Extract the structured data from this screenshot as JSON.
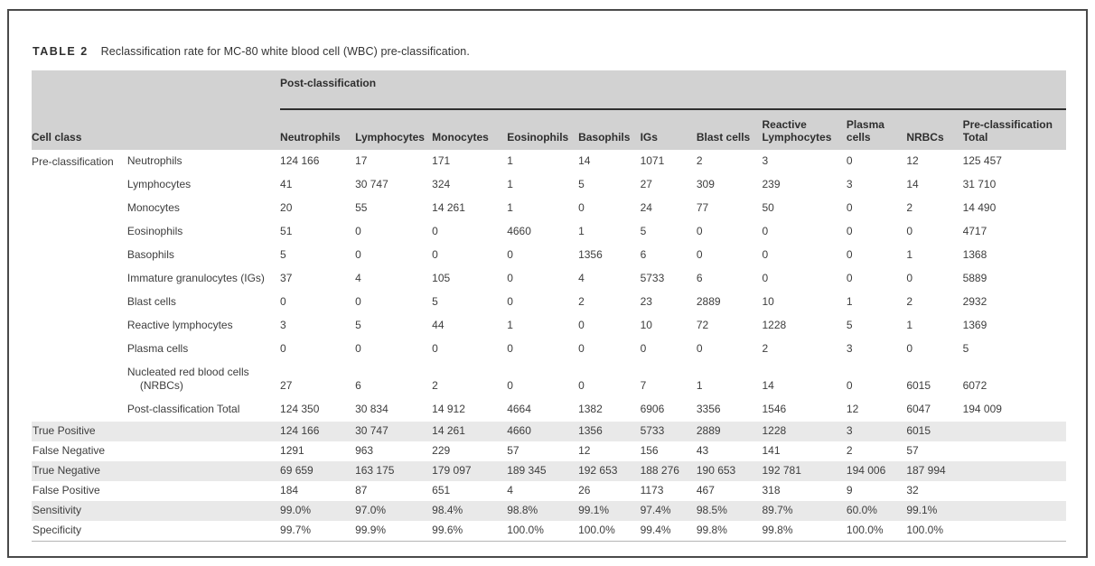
{
  "title": {
    "label": "TABLE 2",
    "caption": "Reclassification rate for MC-80 white blood cell (WBC) pre-classification."
  },
  "table": {
    "span_header": "Post-classification",
    "stub_header": "Cell class",
    "group_label": "Pre-classification",
    "columns": [
      "Neutrophils",
      "Lymphocytes",
      "Monocytes",
      "Eosinophils",
      "Basophils",
      "IGs",
      "Blast cells",
      "Reactive Lymphocytes",
      "Plasma cells",
      "NRBCs",
      "Pre-classification Total"
    ],
    "pre_rows": [
      {
        "label": "Neutrophils",
        "values": [
          "124 166",
          "17",
          "171",
          "1",
          "14",
          "1071",
          "2",
          "3",
          "0",
          "12",
          "125 457"
        ]
      },
      {
        "label": "Lymphocytes",
        "values": [
          "41",
          "30 747",
          "324",
          "1",
          "5",
          "27",
          "309",
          "239",
          "3",
          "14",
          "31 710"
        ]
      },
      {
        "label": "Monocytes",
        "values": [
          "20",
          "55",
          "14 261",
          "1",
          "0",
          "24",
          "77",
          "50",
          "0",
          "2",
          "14 490"
        ]
      },
      {
        "label": "Eosinophils",
        "values": [
          "51",
          "0",
          "0",
          "4660",
          "1",
          "5",
          "0",
          "0",
          "0",
          "0",
          "4717"
        ]
      },
      {
        "label": "Basophils",
        "values": [
          "5",
          "0",
          "0",
          "0",
          "1356",
          "6",
          "0",
          "0",
          "0",
          "1",
          "1368"
        ]
      },
      {
        "label": "Immature granulocytes (IGs)",
        "values": [
          "37",
          "4",
          "105",
          "0",
          "4",
          "5733",
          "6",
          "0",
          "0",
          "0",
          "5889"
        ]
      },
      {
        "label": "Blast cells",
        "values": [
          "0",
          "0",
          "5",
          "0",
          "2",
          "23",
          "2889",
          "10",
          "1",
          "2",
          "2932"
        ]
      },
      {
        "label": "Reactive lymphocytes",
        "values": [
          "3",
          "5",
          "44",
          "1",
          "0",
          "10",
          "72",
          "1228",
          "5",
          "1",
          "1369"
        ]
      },
      {
        "label": "Plasma cells",
        "values": [
          "0",
          "0",
          "0",
          "0",
          "0",
          "0",
          "0",
          "2",
          "3",
          "0",
          "5"
        ]
      },
      {
        "label": "Nucleated red blood cells (NRBCs)",
        "values": [
          "27",
          "6",
          "2",
          "0",
          "0",
          "7",
          "1",
          "14",
          "0",
          "6015",
          "6072"
        ]
      },
      {
        "label": "Post-classification Total",
        "values": [
          "124 350",
          "30 834",
          "14 912",
          "4664",
          "1382",
          "6906",
          "3356",
          "1546",
          "12",
          "6047",
          "194 009"
        ]
      }
    ],
    "summary_rows": [
      {
        "label": "True Positive",
        "values": [
          "124 166",
          "30 747",
          "14 261",
          "4660",
          "1356",
          "5733",
          "2889",
          "1228",
          "3",
          "6015",
          ""
        ]
      },
      {
        "label": "False Negative",
        "values": [
          "1291",
          "963",
          "229",
          "57",
          "12",
          "156",
          "43",
          "141",
          "2",
          "57",
          ""
        ]
      },
      {
        "label": "True Negative",
        "values": [
          "69 659",
          "163 175",
          "179 097",
          "189 345",
          "192 653",
          "188 276",
          "190 653",
          "192 781",
          "194 006",
          "187 994",
          ""
        ]
      },
      {
        "label": "False Positive",
        "values": [
          "184",
          "87",
          "651",
          "4",
          "26",
          "1173",
          "467",
          "318",
          "9",
          "32",
          ""
        ]
      },
      {
        "label": "Sensitivity",
        "values": [
          "99.0%",
          "97.0%",
          "98.4%",
          "98.8%",
          "99.1%",
          "97.4%",
          "98.5%",
          "89.7%",
          "60.0%",
          "99.1%",
          ""
        ]
      },
      {
        "label": "Specificity",
        "values": [
          "99.7%",
          "99.9%",
          "99.6%",
          "100.0%",
          "100.0%",
          "99.4%",
          "99.8%",
          "99.8%",
          "100.0%",
          "100.0%",
          ""
        ]
      }
    ]
  },
  "colors": {
    "header_band": "#d2d2d2",
    "row_shade": "#e9e9e9",
    "dark_rule": "#2f2f2f",
    "light_rule": "#b5b5b5",
    "frame_border": "#4a4a4a",
    "text": "#3d3d3d"
  }
}
